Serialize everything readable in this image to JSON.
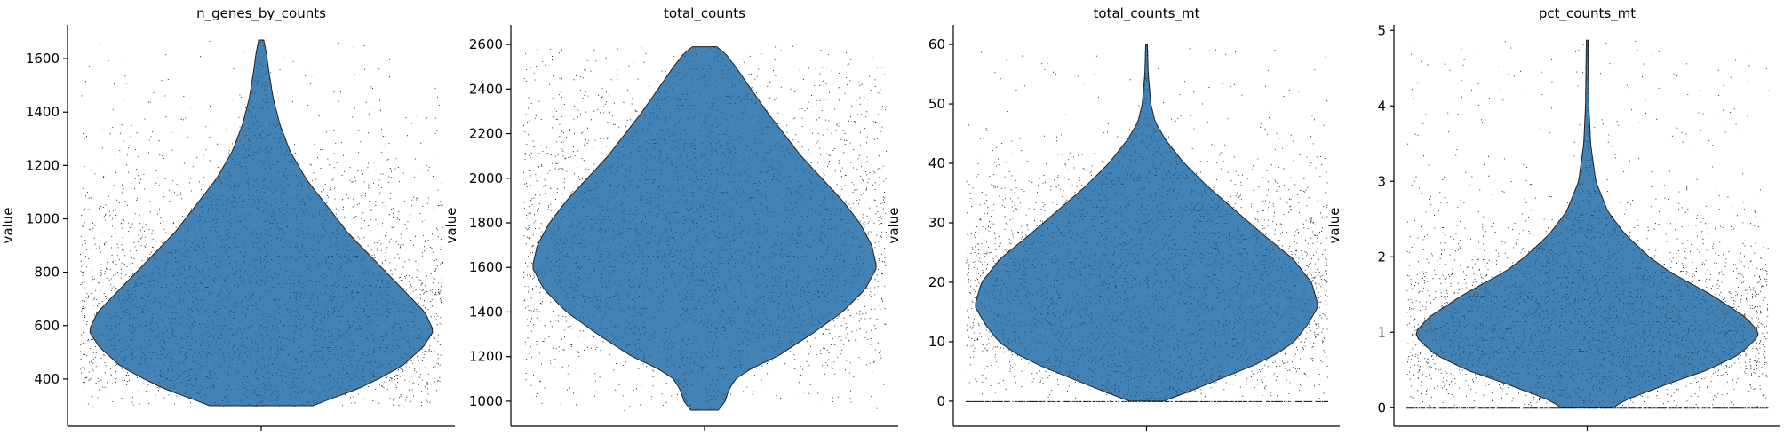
{
  "colors": {
    "violin_fill": "#2f74ad",
    "violin_edge": "#222222",
    "points": "#000000",
    "axis": "#000000"
  },
  "chart_data": [
    {
      "type": "violin",
      "title": "n_genes_by_counts",
      "ylabel": "value",
      "ylim": [
        250,
        1720
      ],
      "yticks": [
        400,
        600,
        800,
        1000,
        1200,
        1400,
        1600
      ],
      "data_range": [
        300,
        1670
      ],
      "density_profile": [
        [
          300,
          0.3
        ],
        [
          330,
          0.42
        ],
        [
          360,
          0.55
        ],
        [
          400,
          0.68
        ],
        [
          450,
          0.82
        ],
        [
          520,
          0.94
        ],
        [
          580,
          1.0
        ],
        [
          650,
          0.95
        ],
        [
          750,
          0.8
        ],
        [
          850,
          0.65
        ],
        [
          950,
          0.5
        ],
        [
          1050,
          0.38
        ],
        [
          1150,
          0.26
        ],
        [
          1250,
          0.17
        ],
        [
          1350,
          0.11
        ],
        [
          1450,
          0.07
        ],
        [
          1550,
          0.045
        ],
        [
          1620,
          0.03
        ],
        [
          1670,
          0.015
        ]
      ],
      "floor_line": false
    },
    {
      "type": "violin",
      "title": "total_counts",
      "ylabel": "value",
      "ylim": [
        920,
        2680
      ],
      "yticks": [
        1000,
        1200,
        1400,
        1600,
        1800,
        2000,
        2200,
        2400,
        2600
      ],
      "data_range": [
        960,
        2590
      ],
      "density_profile": [
        [
          960,
          0.08
        ],
        [
          1000,
          0.12
        ],
        [
          1050,
          0.14
        ],
        [
          1100,
          0.18
        ],
        [
          1150,
          0.28
        ],
        [
          1200,
          0.42
        ],
        [
          1300,
          0.62
        ],
        [
          1400,
          0.8
        ],
        [
          1500,
          0.93
        ],
        [
          1600,
          1.0
        ],
        [
          1700,
          0.97
        ],
        [
          1800,
          0.9
        ],
        [
          1900,
          0.8
        ],
        [
          2000,
          0.68
        ],
        [
          2100,
          0.56
        ],
        [
          2200,
          0.46
        ],
        [
          2300,
          0.36
        ],
        [
          2400,
          0.27
        ],
        [
          2500,
          0.18
        ],
        [
          2560,
          0.12
        ],
        [
          2590,
          0.07
        ]
      ],
      "floor_line": false
    },
    {
      "type": "violin",
      "title": "total_counts_mt",
      "ylabel": "value",
      "ylim": [
        -3,
        63
      ],
      "yticks": [
        0,
        10,
        20,
        30,
        40,
        50,
        60
      ],
      "data_range": [
        0,
        60
      ],
      "density_profile": [
        [
          0,
          0.1
        ],
        [
          2,
          0.28
        ],
        [
          4,
          0.45
        ],
        [
          6,
          0.62
        ],
        [
          8,
          0.76
        ],
        [
          10,
          0.86
        ],
        [
          13,
          0.94
        ],
        [
          16,
          1.0
        ],
        [
          20,
          0.96
        ],
        [
          24,
          0.85
        ],
        [
          28,
          0.68
        ],
        [
          32,
          0.52
        ],
        [
          36,
          0.36
        ],
        [
          40,
          0.22
        ],
        [
          44,
          0.11
        ],
        [
          47,
          0.05
        ],
        [
          50,
          0.025
        ],
        [
          55,
          0.01
        ],
        [
          60,
          0.005
        ]
      ],
      "floor_line": true
    },
    {
      "type": "violin",
      "title": "pct_counts_mt",
      "ylabel": "value",
      "ylim": [
        -0.15,
        5.05
      ],
      "yticks": [
        0,
        1,
        2,
        3,
        4,
        5
      ],
      "data_range": [
        0,
        4.87
      ],
      "density_profile": [
        [
          0,
          0.15
        ],
        [
          0.1,
          0.22
        ],
        [
          0.3,
          0.45
        ],
        [
          0.5,
          0.7
        ],
        [
          0.7,
          0.88
        ],
        [
          0.9,
          0.98
        ],
        [
          1.0,
          1.0
        ],
        [
          1.2,
          0.92
        ],
        [
          1.5,
          0.72
        ],
        [
          1.8,
          0.48
        ],
        [
          2.0,
          0.36
        ],
        [
          2.3,
          0.22
        ],
        [
          2.6,
          0.12
        ],
        [
          3.0,
          0.05
        ],
        [
          3.5,
          0.02
        ],
        [
          4.0,
          0.01
        ],
        [
          4.87,
          0.005
        ]
      ],
      "floor_line": true
    }
  ]
}
